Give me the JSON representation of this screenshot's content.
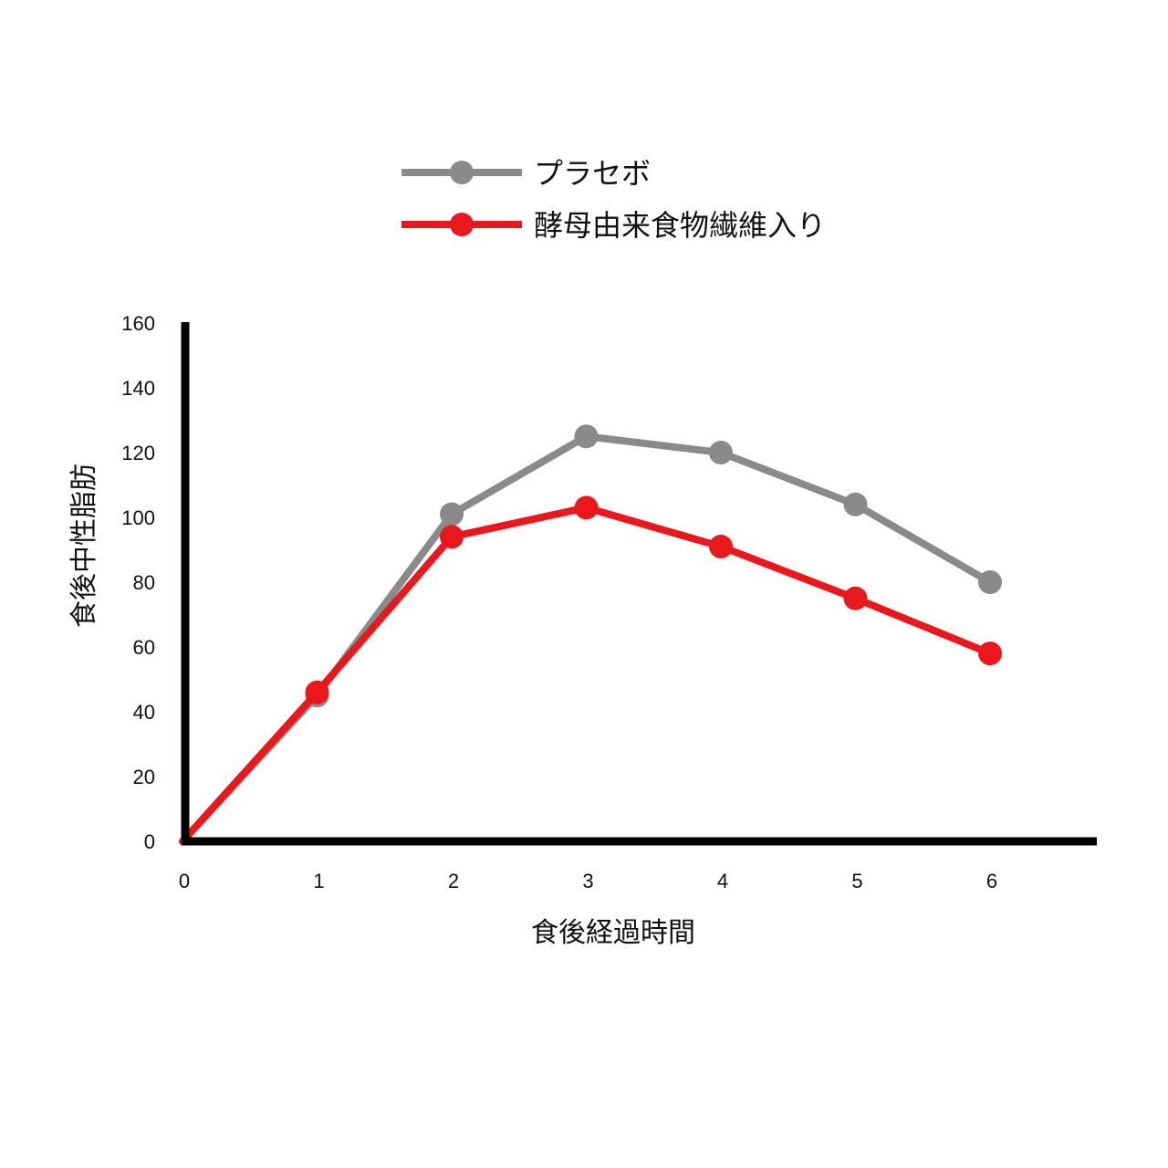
{
  "chart_data": {
    "type": "line",
    "xlabel": "食後経過時間",
    "ylabel": "食後中性脂肪",
    "x": [
      0,
      1,
      2,
      3,
      4,
      5,
      6
    ],
    "xlim": [
      0,
      6.8
    ],
    "ylim": [
      0,
      160
    ],
    "x_ticks": [
      "0",
      "1",
      "2",
      "3",
      "4",
      "5",
      "6"
    ],
    "y_ticks": [
      "0",
      "20",
      "40",
      "60",
      "80",
      "100",
      "120",
      "140",
      "160"
    ],
    "grid": false,
    "legend_position": "top-center",
    "series": [
      {
        "name": "プラセボ",
        "color": "#8a8a8a",
        "values": [
          0,
          45,
          101,
          125,
          120,
          104,
          80
        ]
      },
      {
        "name": "酵母由来食物繊維入り",
        "color": "#e8181c",
        "values": [
          0,
          46,
          94,
          103,
          91,
          75,
          58
        ]
      }
    ]
  }
}
